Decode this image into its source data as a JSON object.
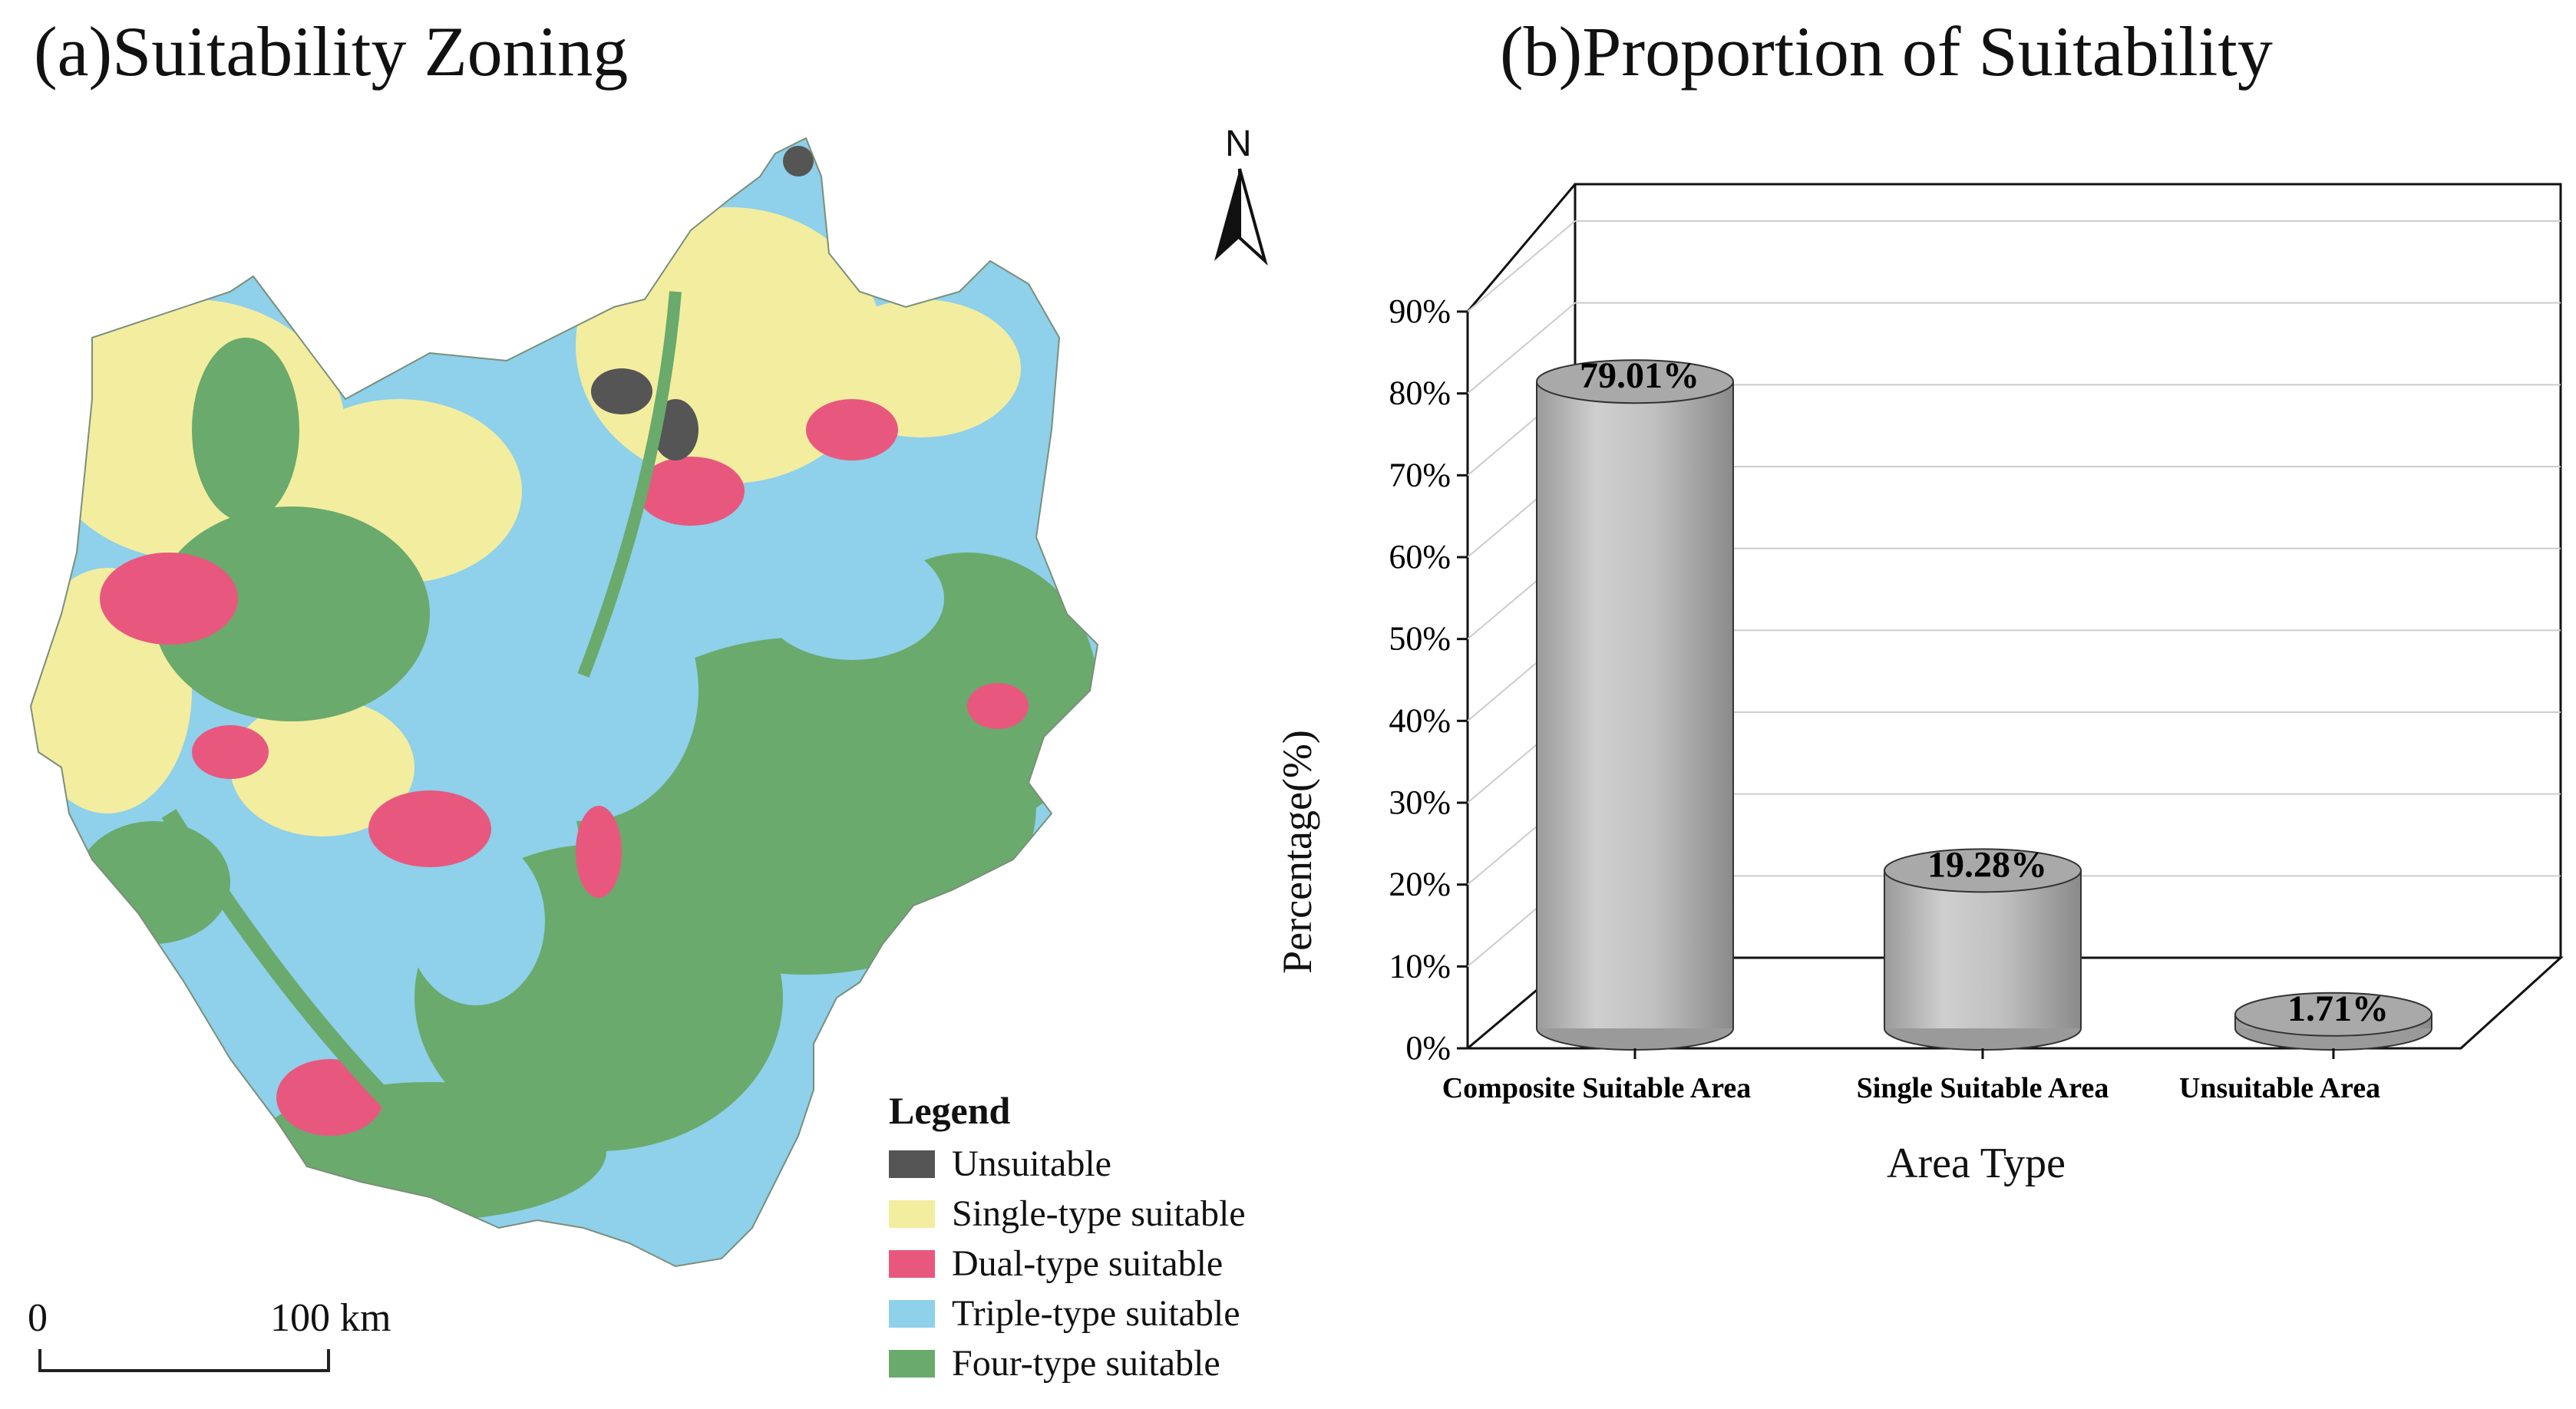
{
  "panel_a": {
    "title": "(a)Suitability Zoning",
    "north_label": "N",
    "scale": {
      "start": "0",
      "end": "100 km"
    },
    "legend": {
      "title": "Legend",
      "items": [
        {
          "label": "Unsuitable",
          "color": "#555555"
        },
        {
          "label": "Single-type suitable",
          "color": "#f3eda0"
        },
        {
          "label": "Dual-type suitable",
          "color": "#e8587e"
        },
        {
          "label": "Triple-type suitable",
          "color": "#8fd0ea"
        },
        {
          "label": "Four-type suitable",
          "color": "#6aaa6c"
        }
      ]
    }
  },
  "panel_b": {
    "title": "(b)Proportion of Suitability"
  },
  "chart_data": {
    "type": "bar",
    "title": "(b)Proportion of Suitability",
    "xlabel": "Area Type",
    "ylabel": "Percentage(%)",
    "ylim": [
      0,
      90
    ],
    "ytick_labels": [
      "0%",
      "10%",
      "20%",
      "30%",
      "40%",
      "50%",
      "60%",
      "70%",
      "80%",
      "90%"
    ],
    "categories": [
      "Composite Suitable Area",
      "Single Suitable Area",
      "Unsuitable Area"
    ],
    "values": [
      79.01,
      19.28,
      1.71
    ],
    "data_labels": [
      "79.01%",
      "19.28%",
      "1.71%"
    ],
    "bar_color": "#b5b5b5",
    "grid": true,
    "style": "3d-cylinder"
  }
}
